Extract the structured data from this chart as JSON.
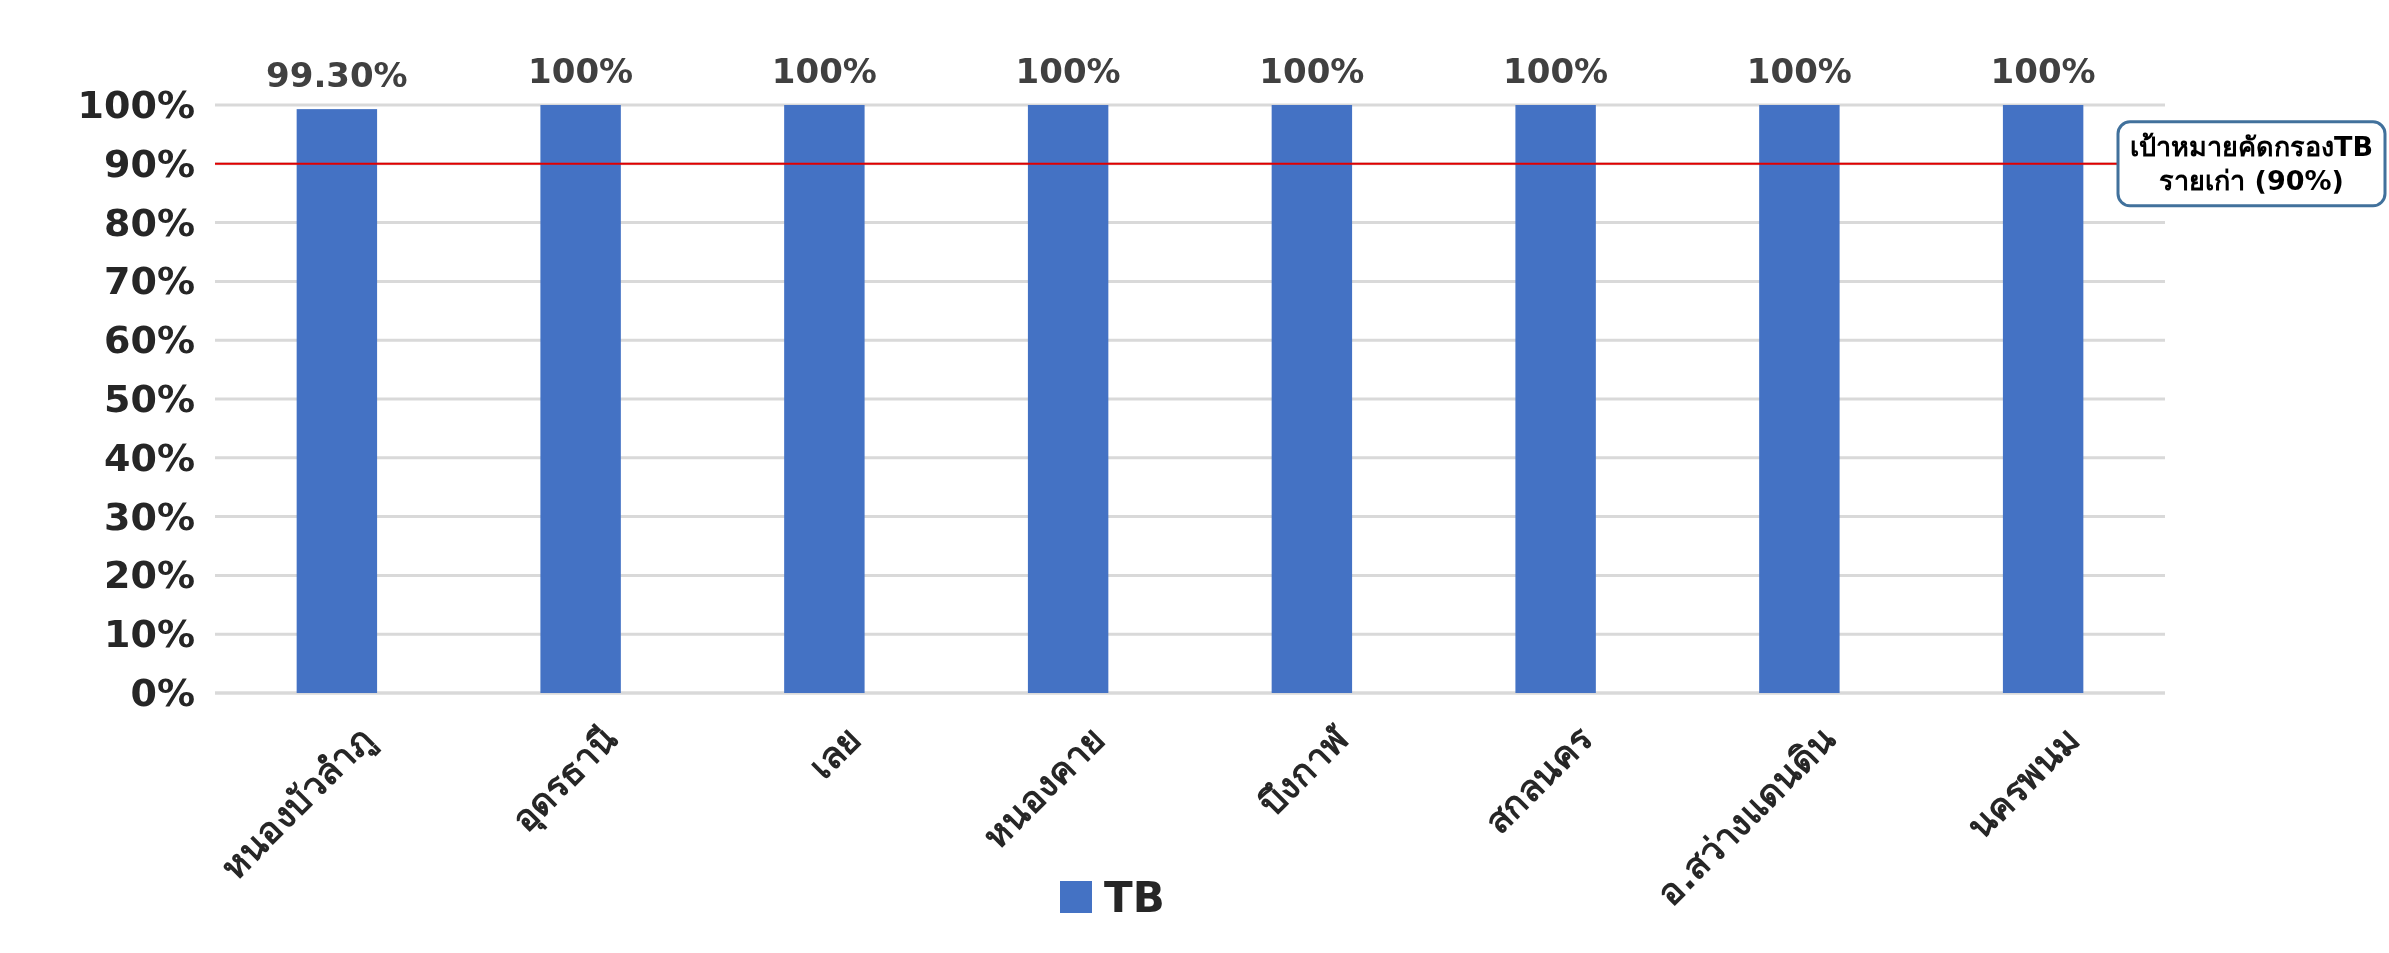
{
  "chart_data": {
    "type": "bar",
    "categories": [
      "หนองบัวลำภู",
      "อุดรธานี",
      "เลย",
      "หนองคาย",
      "บึงกาฬ",
      "สกลนคร",
      "อ.สว่างแดนดิน",
      "นครพนม"
    ],
    "series": [
      {
        "name": "TB",
        "color": "#4472c4",
        "values": [
          99.3,
          100,
          100,
          100,
          100,
          100,
          100,
          100
        ],
        "value_labels": [
          "99.30%",
          "100%",
          "100%",
          "100%",
          "100%",
          "100%",
          "100%",
          "100%"
        ]
      }
    ],
    "ylim": [
      0,
      100
    ],
    "yticks": [
      {
        "value": 0,
        "label": "0%"
      },
      {
        "value": 10,
        "label": "10%"
      },
      {
        "value": 20,
        "label": "20%"
      },
      {
        "value": 30,
        "label": "30%"
      },
      {
        "value": 40,
        "label": "40%"
      },
      {
        "value": 50,
        "label": "50%"
      },
      {
        "value": 60,
        "label": "60%"
      },
      {
        "value": 70,
        "label": "70%"
      },
      {
        "value": 80,
        "label": "80%"
      },
      {
        "value": 90,
        "label": "90%"
      },
      {
        "value": 100,
        "label": "100%"
      }
    ],
    "ref_lines": [
      {
        "axis": "y",
        "value": 90,
        "label": "เป้าหมายคัดกรองTB\nรายเก่า (90%)",
        "color": "#e00000"
      }
    ],
    "grid": "y",
    "legend": "bottom"
  }
}
